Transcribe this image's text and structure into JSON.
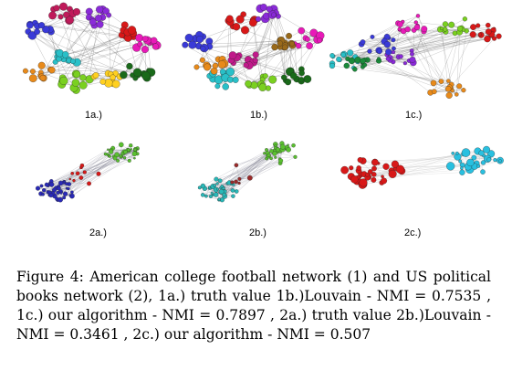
{
  "figure": {
    "caption": "Figure 4: American college football network (1) and US political books network (2), 1a.) truth value 1b.)Louvain - NMI = 0.7535 , 1c.) our algorithm - NMI = 0.7897 , 2a.) truth value 2b.)Louvain - NMI = 0.3461 , 2c.) our algorithm - NMI = 0.507",
    "panels": [
      {
        "id": "1a",
        "label": "1a.)",
        "palette": [
          "#3a3ad8",
          "#d81818",
          "#8a2ad8",
          "#29c0c8",
          "#e88a1a",
          "#7ad020",
          "#e81ab8",
          "#ffd020",
          "#1a6a1a",
          "#c01a5a"
        ]
      },
      {
        "id": "1b",
        "label": "1b.)",
        "palette": [
          "#3a3ad8",
          "#d81818",
          "#8a2ad8",
          "#29c0c8",
          "#e88a1a",
          "#7ad020",
          "#e81ab8",
          "#9a6a1a",
          "#1a6a1a",
          "#c01a8a"
        ]
      },
      {
        "id": "1c",
        "label": "1c.)",
        "palette": [
          "#29c0c8",
          "#d81818",
          "#8a2ad8",
          "#e88a1a",
          "#7ad020",
          "#e81ab8",
          "#3a3ad8",
          "#1a8a3a"
        ]
      },
      {
        "id": "2a",
        "label": "2a.)",
        "palette": [
          "#2a2ab8",
          "#5ac030",
          "#d81818"
        ]
      },
      {
        "id": "2b",
        "label": "2b.)",
        "palette": [
          "#29b8b8",
          "#5ac030",
          "#9a2a2a"
        ]
      },
      {
        "id": "2c",
        "label": "2c.)",
        "palette": [
          "#d81818",
          "#29c0e0"
        ]
      }
    ]
  }
}
